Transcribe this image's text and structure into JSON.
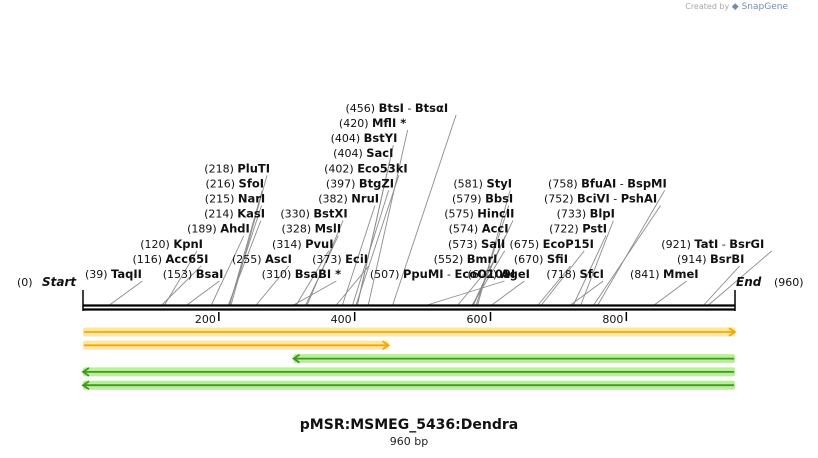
{
  "credit": {
    "prefix": "Created by",
    "brand": "SnapGene"
  },
  "title": "pMSR:MSMEG_5436:Dendra",
  "subtitle": "960 bp",
  "map": {
    "length": 960,
    "start_label": "Start",
    "end_label": "End",
    "start_pos": "(0)",
    "end_pos": "(960)",
    "ticks": [
      200,
      400,
      600,
      800
    ]
  },
  "sites": [
    {
      "pos": 39,
      "names": [
        "TaqII"
      ]
    },
    {
      "pos": 116,
      "names": [
        "Acc65I"
      ]
    },
    {
      "pos": 120,
      "names": [
        "KpnI"
      ]
    },
    {
      "pos": 153,
      "names": [
        "BsaI"
      ]
    },
    {
      "pos": 189,
      "names": [
        "AhdI"
      ]
    },
    {
      "pos": 214,
      "names": [
        "KasI"
      ]
    },
    {
      "pos": 215,
      "names": [
        "NarI"
      ]
    },
    {
      "pos": 216,
      "names": [
        "SfoI"
      ]
    },
    {
      "pos": 218,
      "names": [
        "PluTI"
      ]
    },
    {
      "pos": 255,
      "names": [
        "AscI"
      ]
    },
    {
      "pos": 310,
      "names": [
        "BsaBI *"
      ]
    },
    {
      "pos": 314,
      "names": [
        "PvuI"
      ]
    },
    {
      "pos": 328,
      "names": [
        "MslI"
      ]
    },
    {
      "pos": 330,
      "names": [
        "BstXI"
      ]
    },
    {
      "pos": 373,
      "names": [
        "EciI"
      ]
    },
    {
      "pos": 382,
      "names": [
        "NruI"
      ]
    },
    {
      "pos": 397,
      "names": [
        "BtgZI"
      ]
    },
    {
      "pos": 402,
      "names": [
        "Eco53kI"
      ]
    },
    {
      "pos": 404,
      "names": [
        "SacI"
      ]
    },
    {
      "pos": 404,
      "names": [
        "BstYI"
      ]
    },
    {
      "pos": 420,
      "names": [
        "MflI *"
      ]
    },
    {
      "pos": 456,
      "names": [
        "BtsI",
        "BtsαI"
      ]
    },
    {
      "pos": 507,
      "names": [
        "PpuMI",
        "EcoO109I"
      ]
    },
    {
      "pos": 552,
      "names": [
        "BmrI"
      ]
    },
    {
      "pos": 573,
      "names": [
        "SalI"
      ]
    },
    {
      "pos": 574,
      "names": [
        "AccI"
      ]
    },
    {
      "pos": 575,
      "names": [
        "HincII"
      ]
    },
    {
      "pos": 579,
      "names": [
        "BbsI"
      ]
    },
    {
      "pos": 581,
      "names": [
        "StyI"
      ]
    },
    {
      "pos": 602,
      "names": [
        "AgeI"
      ]
    },
    {
      "pos": 670,
      "names": [
        "SfiI"
      ]
    },
    {
      "pos": 675,
      "names": [
        "EcoP15I"
      ]
    },
    {
      "pos": 718,
      "names": [
        "SfcI"
      ]
    },
    {
      "pos": 722,
      "names": [
        "PstI"
      ]
    },
    {
      "pos": 733,
      "names": [
        "BlpI"
      ]
    },
    {
      "pos": 752,
      "names": [
        "BciVI",
        "PshAI"
      ]
    },
    {
      "pos": 758,
      "names": [
        "BfuAI",
        "BspMI"
      ]
    },
    {
      "pos": 841,
      "names": [
        "MmeI"
      ]
    },
    {
      "pos": 914,
      "names": [
        "BsrBI"
      ]
    },
    {
      "pos": 921,
      "names": [
        "TatI",
        "BsrGI"
      ]
    }
  ],
  "features": [
    {
      "start": 0,
      "end": 960,
      "dir": "right",
      "color": "#f2a900",
      "glow": "#fde7a3"
    },
    {
      "start": 0,
      "end": 450,
      "dir": "right",
      "color": "#f2a900",
      "glow": "#fde7a3"
    },
    {
      "start": 310,
      "end": 960,
      "dir": "left",
      "color": "#3d9a1a",
      "glow": "#b9ef9a"
    },
    {
      "start": 0,
      "end": 960,
      "dir": "left",
      "color": "#3d9a1a",
      "glow": "#b9ef9a"
    },
    {
      "start": 0,
      "end": 960,
      "dir": "left",
      "color": "#3d9a1a",
      "glow": "#b9ef9a"
    }
  ]
}
